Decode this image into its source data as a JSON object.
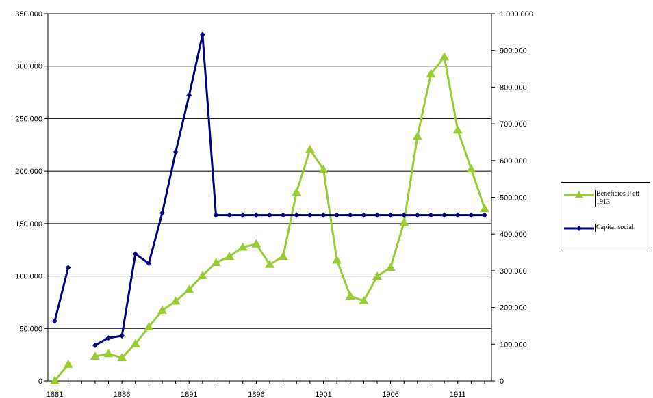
{
  "chart_data": {
    "type": "line",
    "title": "",
    "xlabel": "",
    "ylabel": "",
    "x": [
      1881,
      1882,
      1883,
      1884,
      1885,
      1886,
      1887,
      1888,
      1889,
      1890,
      1891,
      1892,
      1893,
      1894,
      1895,
      1896,
      1897,
      1898,
      1899,
      1900,
      1901,
      1902,
      1903,
      1904,
      1905,
      1906,
      1907,
      1908,
      1909,
      1910,
      1911,
      1912,
      1913
    ],
    "xticks": [
      "1881",
      "1886",
      "1891",
      "1896",
      "1901",
      "1906",
      "1911"
    ],
    "ylim_left": [
      0,
      350000
    ],
    "yticks_left": [
      "0",
      "50.000",
      "100.000",
      "150.000",
      "200.000",
      "250.000",
      "300.000",
      "350.000"
    ],
    "ylim_right": [
      0,
      1000000
    ],
    "yticks_right": [
      "0",
      "100.000",
      "200.000",
      "300.000",
      "400.000",
      "500.000",
      "600.000",
      "700.000",
      "800.000",
      "900.000",
      "1.000.000"
    ],
    "grid": true,
    "legend_position": "right",
    "series": [
      {
        "name": "Beneficios P ctt 1913",
        "axis": "right",
        "color": "#99cc33",
        "marker": "triangle",
        "values": [
          0,
          45000,
          null,
          67000,
          74000,
          63000,
          101000,
          147000,
          192000,
          217000,
          249000,
          287000,
          322000,
          339000,
          364000,
          373000,
          317000,
          339000,
          514000,
          630000,
          576000,
          329000,
          231000,
          218000,
          285000,
          309000,
          432000,
          666000,
          836000,
          882000,
          683000,
          577000,
          469000
        ]
      },
      {
        "name": "Capital social",
        "axis": "left",
        "color": "#000080",
        "marker": "diamond",
        "values": [
          57000,
          108000,
          null,
          34000,
          41000,
          43000,
          121000,
          112000,
          160000,
          218000,
          272000,
          330000,
          158000,
          158000,
          158000,
          158000,
          158000,
          158000,
          158000,
          158000,
          158000,
          158000,
          158000,
          158000,
          158000,
          158000,
          158000,
          158000,
          158000,
          158000,
          158000,
          158000,
          158000
        ]
      }
    ]
  },
  "legend": {
    "items": [
      {
        "label": "Beneficios P ctt 1913"
      },
      {
        "label": "Capital social"
      }
    ]
  }
}
